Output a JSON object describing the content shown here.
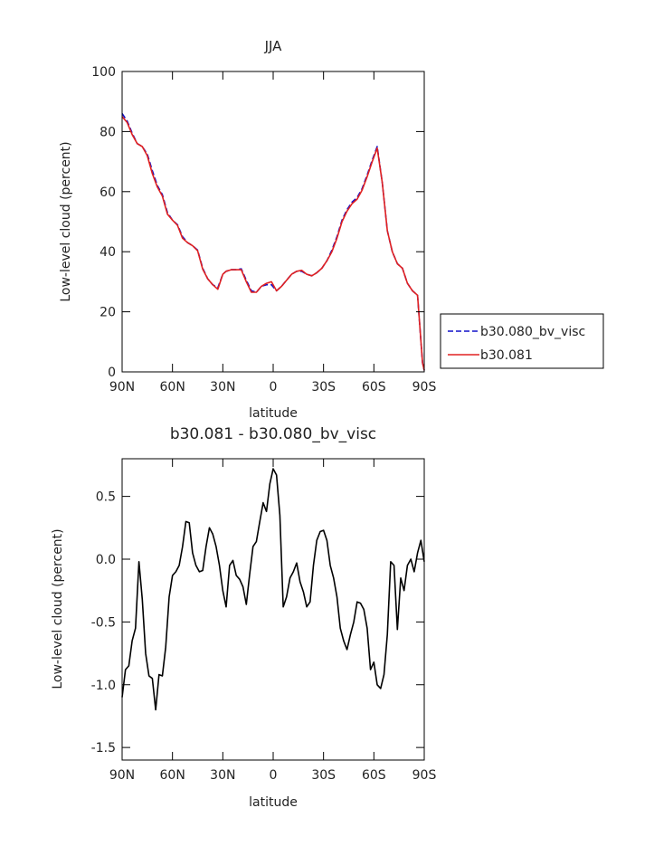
{
  "chart_data": [
    {
      "type": "line",
      "title": "JJA",
      "xlabel": "latitude",
      "ylabel": "Low-level cloud (percent)",
      "xlim": [
        -90,
        90
      ],
      "ylim": [
        0,
        100
      ],
      "x_ticks": [
        -90,
        -60,
        -30,
        0,
        30,
        60,
        90
      ],
      "x_tick_labels": [
        "90N",
        "60N",
        "30N",
        "0",
        "30S",
        "60S",
        "90S"
      ],
      "y_ticks": [
        0,
        20,
        40,
        60,
        80,
        100
      ],
      "y_tick_labels": [
        "0",
        "20",
        "40",
        "60",
        "80",
        "100"
      ],
      "legend_position": "right",
      "x": [
        -90,
        -87,
        -84,
        -81,
        -78,
        -75,
        -72,
        -69,
        -66,
        -63,
        -60,
        -57,
        -54,
        -51,
        -48,
        -45,
        -42,
        -39,
        -36,
        -33,
        -30,
        -28,
        -25,
        -22,
        -19,
        -16,
        -13,
        -10,
        -7,
        -4,
        -1,
        2,
        5,
        8,
        11,
        14,
        17,
        20,
        23,
        26,
        29,
        32,
        35,
        38,
        41,
        44,
        47,
        50,
        53,
        56,
        59,
        62,
        65,
        68,
        71,
        74,
        77,
        80,
        83,
        86,
        89,
        90
      ],
      "series": [
        {
          "name": "b30.080_bv_visc",
          "color": "#1010c8",
          "dash": "dashed",
          "values": [
            86.0,
            83.5,
            79.5,
            76.0,
            75.0,
            72.5,
            67.0,
            62.0,
            59.0,
            53.0,
            50.5,
            49.0,
            45.0,
            43.0,
            42.0,
            40.5,
            34.5,
            31.0,
            29.0,
            28.0,
            32.5,
            33.5,
            34.0,
            34.0,
            34.3,
            30.5,
            27.0,
            26.5,
            28.5,
            29.0,
            29.0,
            27.0,
            28.5,
            30.5,
            32.5,
            33.5,
            33.5,
            32.5,
            32.0,
            33.0,
            34.5,
            37.0,
            40.5,
            45.0,
            50.5,
            54.0,
            56.5,
            58.0,
            61.0,
            65.5,
            70.5,
            75.0,
            63.0,
            47.0,
            40.0,
            36.0,
            34.5,
            29.5,
            27.0,
            25.5,
            3.0,
            0.5
          ]
        },
        {
          "name": "b30.081",
          "color": "#e02020",
          "dash": "solid",
          "values": [
            85.0,
            83.0,
            79.0,
            76.0,
            75.0,
            72.0,
            66.0,
            61.5,
            58.5,
            52.5,
            50.5,
            48.8,
            44.5,
            43.0,
            42.0,
            40.3,
            34.2,
            31.0,
            29.0,
            27.5,
            32.5,
            33.5,
            34.0,
            34.0,
            34.0,
            30.0,
            26.5,
            26.5,
            28.5,
            29.5,
            30.0,
            27.0,
            28.5,
            30.5,
            32.5,
            33.5,
            33.8,
            32.5,
            32.0,
            33.0,
            34.5,
            37.0,
            40.0,
            44.5,
            50.0,
            53.5,
            56.0,
            57.5,
            60.5,
            65.0,
            70.0,
            74.5,
            63.0,
            47.0,
            40.0,
            36.0,
            34.5,
            29.5,
            27.0,
            25.5,
            3.0,
            0.5
          ]
        }
      ]
    },
    {
      "type": "line",
      "title": "b30.081 - b30.080_bv_visc",
      "xlabel": "latitude",
      "ylabel": "Low-level cloud (percent)",
      "xlim": [
        -90,
        90
      ],
      "ylim": [
        -1.6,
        0.8
      ],
      "x_ticks": [
        -90,
        -60,
        -30,
        0,
        30,
        60,
        90
      ],
      "x_tick_labels": [
        "90N",
        "60N",
        "30N",
        "0",
        "30S",
        "60S",
        "90S"
      ],
      "y_ticks": [
        -1.5,
        -1.0,
        -0.5,
        0.0,
        0.5
      ],
      "y_tick_labels": [
        "-1.5",
        "-1.0",
        "-0.5",
        "0.0",
        "0.5"
      ],
      "series": [
        {
          "color": "#000000",
          "x": [
            -90,
            -88,
            -86,
            -84,
            -82,
            -80,
            -78,
            -76,
            -74,
            -72,
            -70,
            -68,
            -66,
            -64,
            -62,
            -60,
            -58,
            -56,
            -54,
            -52,
            -50,
            -48,
            -46,
            -44,
            -42,
            -40,
            -38,
            -36,
            -34,
            -32,
            -30,
            -28,
            -26,
            -24,
            -22,
            -20,
            -18,
            -16,
            -14,
            -12,
            -10,
            -8,
            -6,
            -4,
            -2,
            0,
            2,
            4,
            6,
            8,
            10,
            12,
            14,
            16,
            18,
            20,
            22,
            24,
            26,
            28,
            30,
            32,
            34,
            36,
            38,
            40,
            42,
            44,
            46,
            48,
            50,
            52,
            54,
            56,
            58,
            60,
            62,
            64,
            66,
            68,
            70,
            72,
            74,
            76,
            78,
            80,
            82,
            84,
            86,
            88,
            90
          ],
          "values": [
            -1.1,
            -0.88,
            -0.85,
            -0.65,
            -0.55,
            -0.02,
            -0.32,
            -0.75,
            -0.93,
            -0.95,
            -1.2,
            -0.92,
            -0.93,
            -0.7,
            -0.3,
            -0.13,
            -0.1,
            -0.05,
            0.1,
            0.3,
            0.29,
            0.05,
            -0.05,
            -0.1,
            -0.09,
            0.1,
            0.25,
            0.2,
            0.1,
            -0.05,
            -0.25,
            -0.38,
            -0.05,
            -0.01,
            -0.13,
            -0.16,
            -0.22,
            -0.36,
            -0.12,
            0.1,
            0.14,
            0.3,
            0.45,
            0.38,
            0.6,
            0.72,
            0.67,
            0.35,
            -0.38,
            -0.3,
            -0.15,
            -0.1,
            -0.03,
            -0.18,
            -0.26,
            -0.38,
            -0.34,
            -0.05,
            0.15,
            0.22,
            0.23,
            0.15,
            -0.05,
            -0.15,
            -0.3,
            -0.55,
            -0.65,
            -0.72,
            -0.6,
            -0.5,
            -0.34,
            -0.35,
            -0.4,
            -0.55,
            -0.88,
            -0.82,
            -1.0,
            -1.03,
            -0.92,
            -0.6,
            -0.02,
            -0.05,
            -0.56,
            -0.15,
            -0.25,
            -0.05,
            0.0,
            -0.1,
            0.05,
            0.15,
            -0.02
          ]
        }
      ]
    }
  ]
}
